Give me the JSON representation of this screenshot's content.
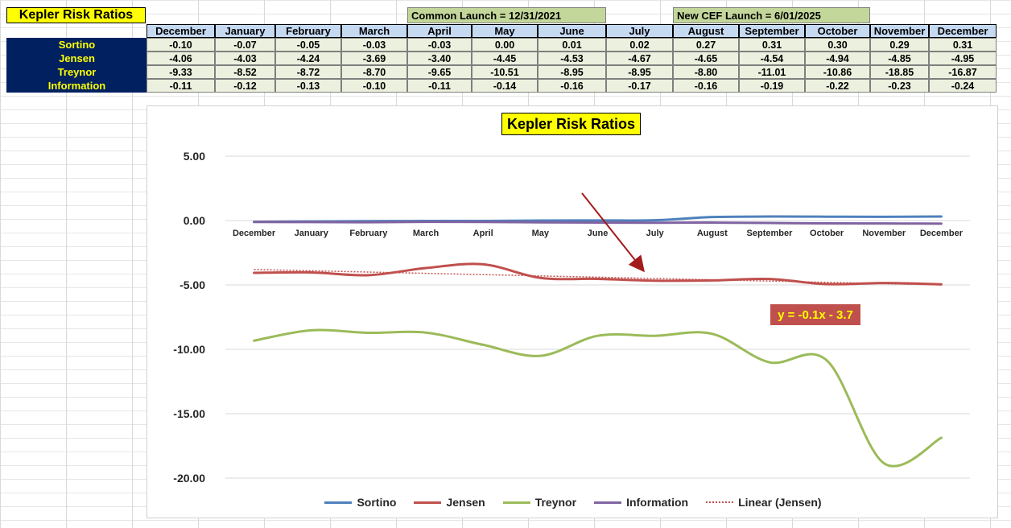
{
  "table": {
    "title": "Kepler Risk Ratios",
    "common_launch": "Common Launch = 12/31/2021",
    "new_cef_launch": "New CEF Launch = 6/01/2025",
    "months": [
      "December",
      "January",
      "February",
      "March",
      "April",
      "May",
      "June",
      "July",
      "August",
      "September",
      "October",
      "November",
      "December"
    ],
    "rows": [
      {
        "label": "Sortino",
        "values": [
          "-0.10",
          "-0.07",
          "-0.05",
          "-0.03",
          "-0.03",
          "0.00",
          "0.01",
          "0.02",
          "0.27",
          "0.31",
          "0.30",
          "0.29",
          "0.31"
        ]
      },
      {
        "label": "Jensen",
        "values": [
          "-4.06",
          "-4.03",
          "-4.24",
          "-3.69",
          "-3.40",
          "-4.45",
          "-4.53",
          "-4.67",
          "-4.65",
          "-4.54",
          "-4.94",
          "-4.85",
          "-4.95"
        ]
      },
      {
        "label": "Treynor",
        "values": [
          "-9.33",
          "-8.52",
          "-8.72",
          "-8.70",
          "-9.65",
          "-10.51",
          "-8.95",
          "-8.95",
          "-8.80",
          "-11.01",
          "-10.86",
          "-18.85",
          "-16.87"
        ]
      },
      {
        "label": "Information",
        "values": [
          "-0.11",
          "-0.12",
          "-0.13",
          "-0.10",
          "-0.11",
          "-0.14",
          "-0.16",
          "-0.17",
          "-0.16",
          "-0.19",
          "-0.22",
          "-0.23",
          "-0.24"
        ]
      }
    ]
  },
  "chart_data": {
    "type": "line",
    "title": "Kepler Risk Ratios",
    "categories": [
      "December",
      "January",
      "February",
      "March",
      "April",
      "May",
      "June",
      "July",
      "August",
      "September",
      "October",
      "November",
      "December"
    ],
    "ylim": [
      -20,
      5
    ],
    "yticks": [
      "5.00",
      "0.00",
      "-5.00",
      "-10.00",
      "-15.00",
      "-20.00"
    ],
    "ytick_values": [
      5,
      0,
      -5,
      -10,
      -15,
      -20
    ],
    "grid": true,
    "legend": "bottom",
    "series": [
      {
        "name": "Sortino",
        "color": "#4f81bd",
        "values": [
          -0.1,
          -0.07,
          -0.05,
          -0.03,
          -0.03,
          0.0,
          0.01,
          0.02,
          0.27,
          0.31,
          0.3,
          0.29,
          0.31
        ]
      },
      {
        "name": "Jensen",
        "color": "#c0504d",
        "values": [
          -4.06,
          -4.03,
          -4.24,
          -3.69,
          -3.4,
          -4.45,
          -4.53,
          -4.67,
          -4.65,
          -4.54,
          -4.94,
          -4.85,
          -4.95
        ]
      },
      {
        "name": "Treynor",
        "color": "#9bbb59",
        "values": [
          -9.33,
          -8.52,
          -8.72,
          -8.7,
          -9.65,
          -10.51,
          -8.95,
          -8.95,
          -8.8,
          -11.01,
          -10.86,
          -18.85,
          -16.87
        ]
      },
      {
        "name": "Information",
        "color": "#8064a2",
        "values": [
          -0.11,
          -0.12,
          -0.13,
          -0.1,
          -0.11,
          -0.14,
          -0.16,
          -0.17,
          -0.16,
          -0.19,
          -0.22,
          -0.23,
          -0.24
        ]
      }
    ],
    "trendline": {
      "name": "Linear (Jensen)",
      "color": "#c0504d",
      "slope": -0.1,
      "intercept": -3.7
    },
    "trendline_equation": "y = -0.1x - 3.7",
    "annotation_arrow_color": "#a31c1c"
  }
}
